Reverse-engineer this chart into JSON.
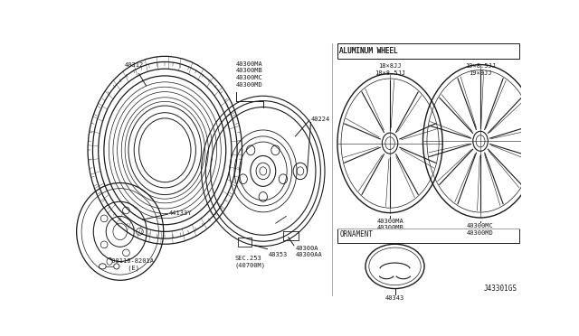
{
  "bg_color": "#ffffff",
  "line_color": "#1a1a1a",
  "diagram_id": "J43301GS",
  "right_section_title_alum": "ALUMINUM WHEEL",
  "right_section_title_orn": "ORNAMENT",
  "wheel1_label_top": "18×8JJ\n18×8.5JJ",
  "wheel2_label_top": "19×8.5JJ\n19×9JJ",
  "wheel1_label_bot": "40300MA\n40300MB",
  "wheel2_label_bot": "40300MC\n40300MD",
  "ornament_label": "40343",
  "label_40312": "40312",
  "label_40300_group": "40300MA\n40300MB\n40300MC\n40300MD",
  "label_40224": "40224",
  "label_44133Y": "44133Y",
  "label_bolt": "³08110-8201A\n     (E)",
  "label_sec": "SEC.253\n(40700M)",
  "label_40353": "40353",
  "label_40300A": "40300A\n40300AA",
  "fs_label": 5.0,
  "fs_header": 5.5,
  "fs_id": 5.5
}
